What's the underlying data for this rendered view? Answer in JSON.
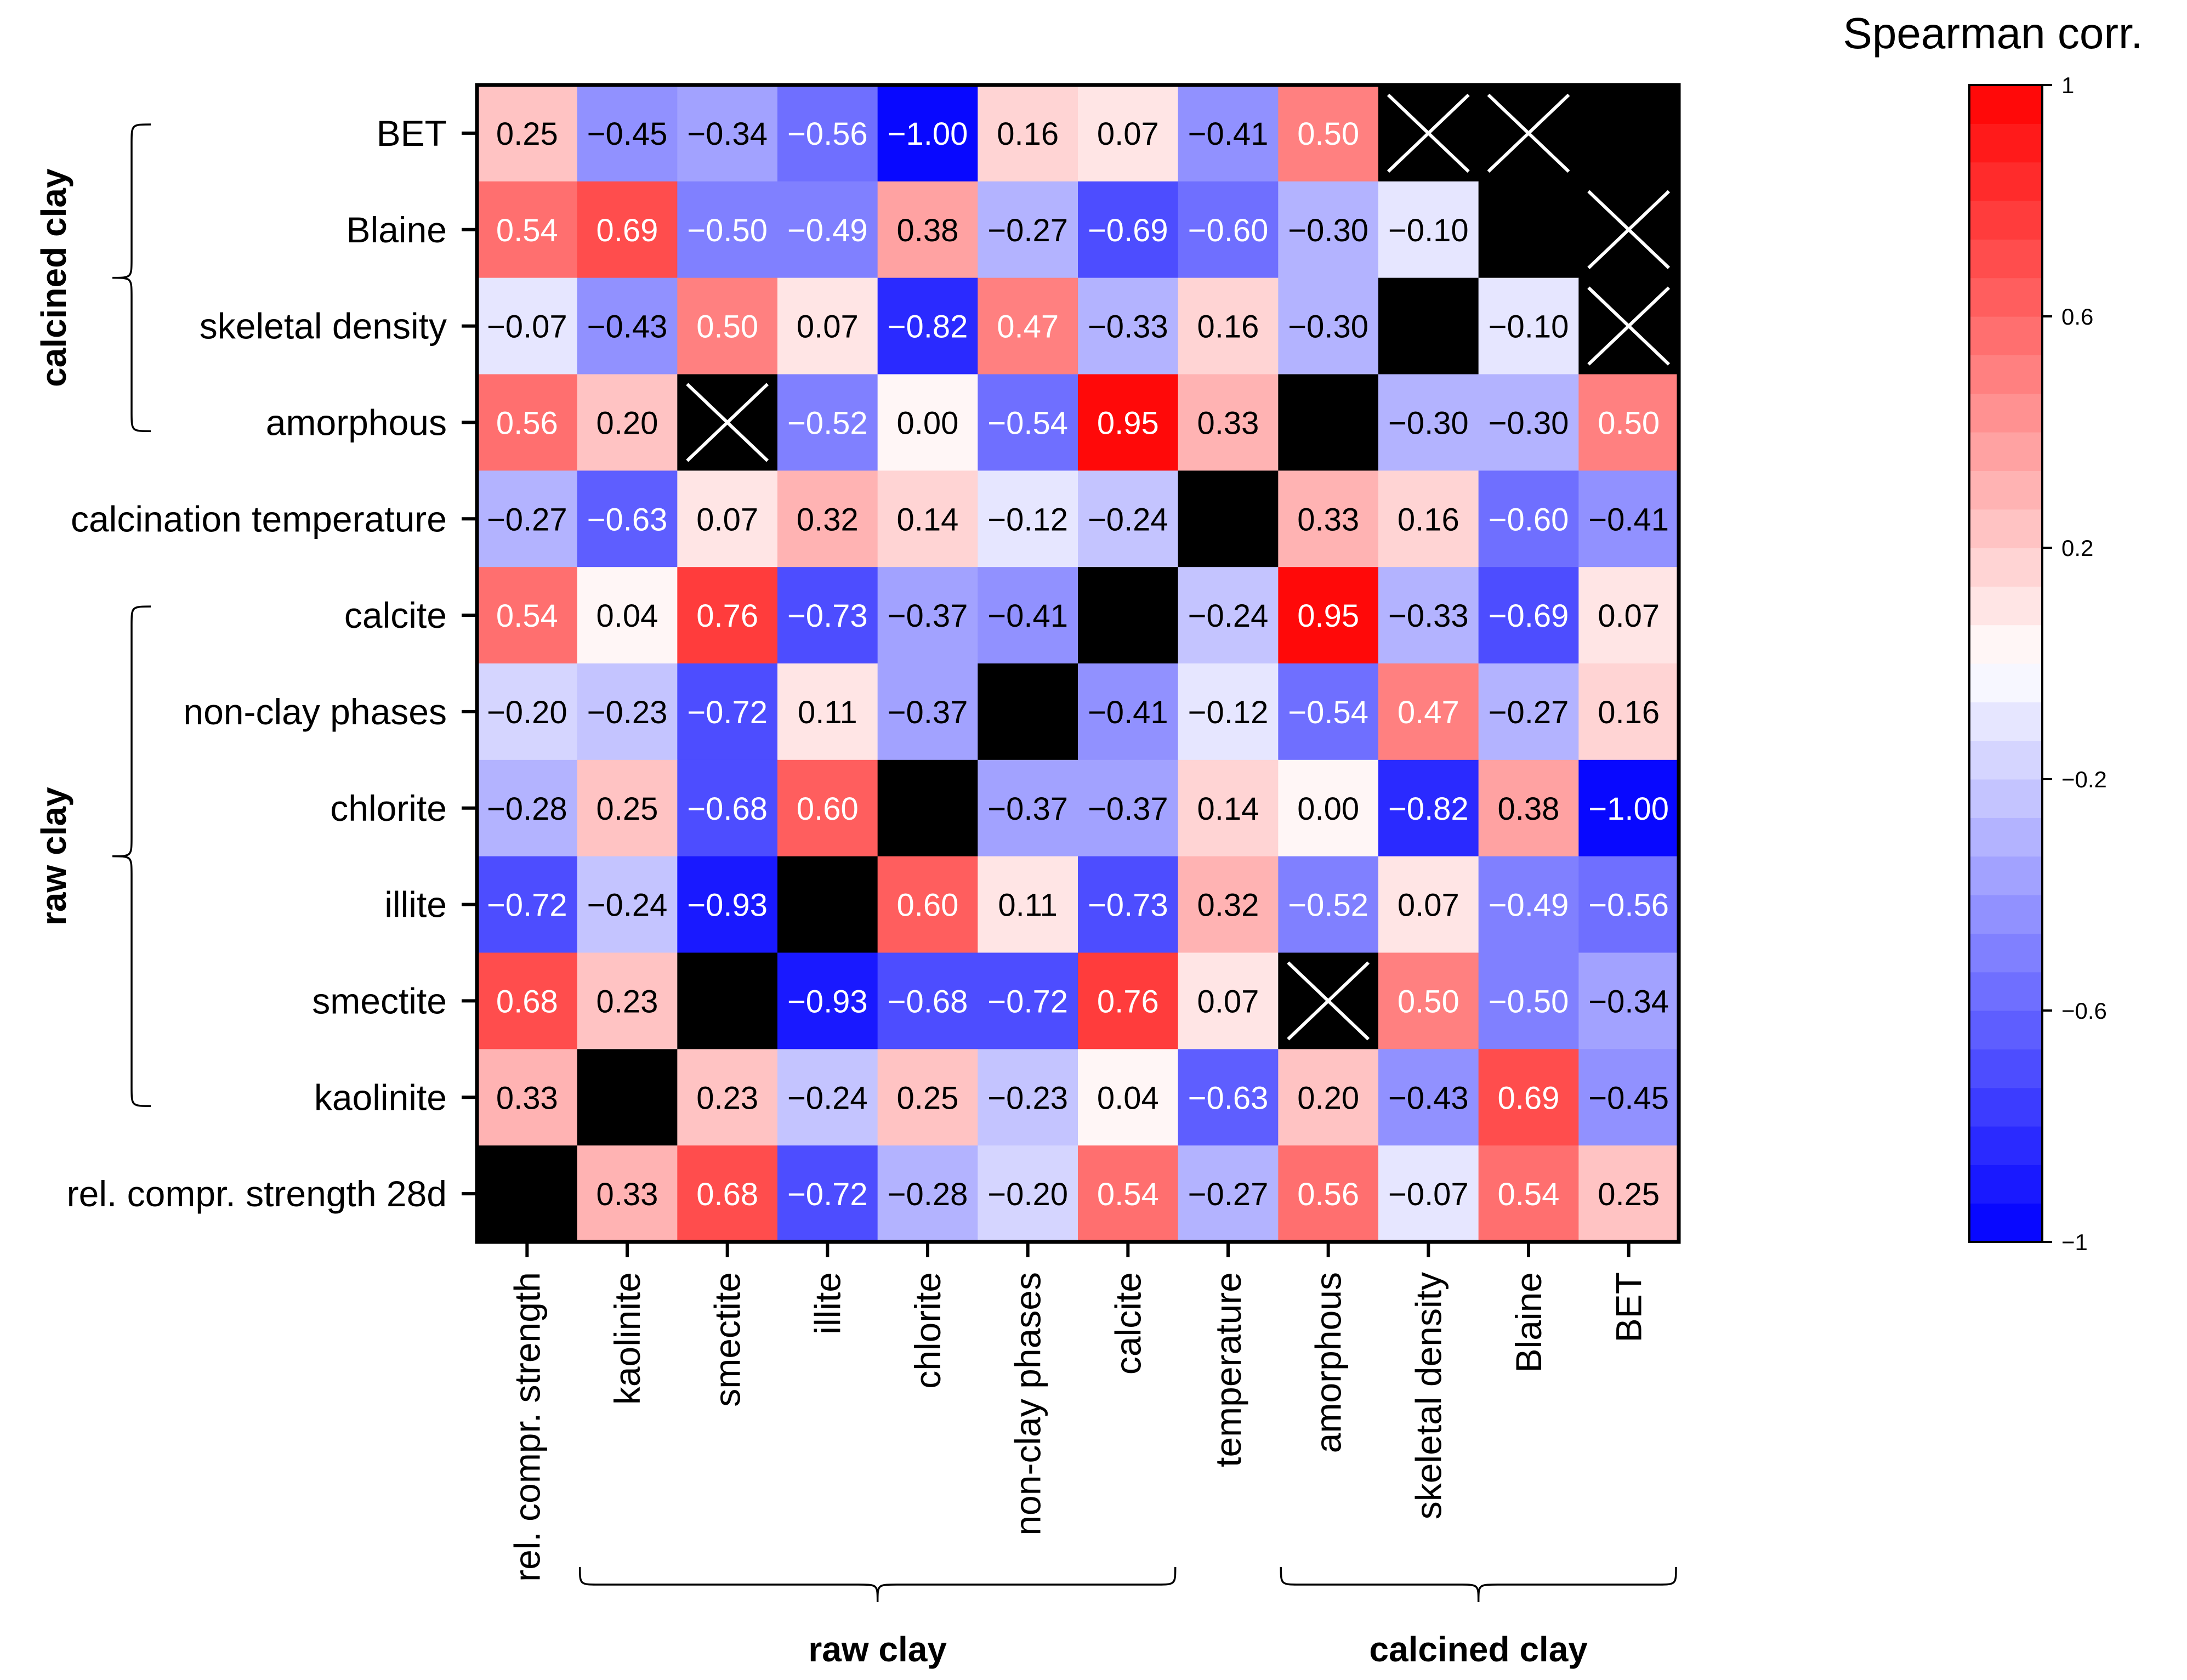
{
  "chart_data": {
    "type": "heatmap",
    "title": "Spearman corr.",
    "colorbar": {
      "title": "Spearman corr.",
      "min": -1,
      "max": 1,
      "levels": 30,
      "low_color": "#0000ff",
      "mid_color": "#ffffff",
      "high_color": "#ff0000",
      "tick_labels": [
        "1",
        "0.6",
        "0.2",
        "−0.2",
        "−0.6",
        "−1"
      ],
      "tick_values": [
        1,
        0.6,
        0.2,
        -0.2,
        -0.6,
        -1
      ]
    },
    "row_labels": [
      "BET",
      "Blaine",
      "skeletal density",
      "amorphous",
      "calcination temperature",
      "calcite",
      "non-clay phases",
      "chlorite",
      "illite",
      "smectite",
      "kaolinite",
      "rel. compr. strength 28d"
    ],
    "col_labels": [
      "rel. compr. strength",
      "kaolinite",
      "smectite",
      "illite",
      "chlorite",
      "non-clay phases",
      "calcite",
      "temperature",
      "amorphous",
      "skeletal density",
      "Blaine",
      "BET"
    ],
    "row_groups": [
      {
        "label": "calcined clay",
        "from_row": 0,
        "to_row": 3
      },
      {
        "label": "raw clay",
        "from_row": 5,
        "to_row": 10
      }
    ],
    "col_groups": [
      {
        "label": "raw clay",
        "from_col": 1,
        "to_col": 6
      },
      {
        "label": "calcined clay",
        "from_col": 8,
        "to_col": 11
      }
    ],
    "na_color": "#000000",
    "values": [
      [
        0.25,
        -0.45,
        -0.34,
        -0.56,
        -1.0,
        0.16,
        0.07,
        -0.41,
        0.5,
        "X",
        "X",
        null
      ],
      [
        0.54,
        0.69,
        -0.5,
        -0.49,
        0.38,
        -0.27,
        -0.69,
        -0.6,
        -0.3,
        -0.1,
        null,
        "X"
      ],
      [
        -0.07,
        -0.43,
        0.5,
        0.07,
        -0.82,
        0.47,
        -0.33,
        0.16,
        -0.3,
        null,
        -0.1,
        "X"
      ],
      [
        0.56,
        0.2,
        "X",
        -0.52,
        0.0,
        -0.54,
        0.95,
        0.33,
        null,
        -0.3,
        -0.3,
        0.5
      ],
      [
        -0.27,
        -0.63,
        0.07,
        0.32,
        0.14,
        -0.12,
        -0.24,
        null,
        0.33,
        0.16,
        -0.6,
        -0.41
      ],
      [
        0.54,
        0.04,
        0.76,
        -0.73,
        -0.37,
        -0.41,
        null,
        -0.24,
        0.95,
        -0.33,
        -0.69,
        0.07
      ],
      [
        -0.2,
        -0.23,
        -0.72,
        0.11,
        -0.37,
        null,
        -0.41,
        -0.12,
        -0.54,
        0.47,
        -0.27,
        0.16
      ],
      [
        -0.28,
        0.25,
        -0.68,
        0.6,
        null,
        -0.37,
        -0.37,
        0.14,
        0.0,
        -0.82,
        0.38,
        -1.0
      ],
      [
        -0.72,
        -0.24,
        -0.93,
        null,
        0.6,
        0.11,
        -0.73,
        0.32,
        -0.52,
        0.07,
        -0.49,
        -0.56
      ],
      [
        0.68,
        0.23,
        null,
        -0.93,
        -0.68,
        -0.72,
        0.76,
        0.07,
        "X",
        0.5,
        -0.5,
        -0.34
      ],
      [
        0.33,
        null,
        0.23,
        -0.24,
        0.25,
        -0.23,
        0.04,
        -0.63,
        0.2,
        -0.43,
        0.69,
        -0.45
      ],
      [
        null,
        0.33,
        0.68,
        -0.72,
        -0.28,
        -0.2,
        0.54,
        -0.27,
        0.56,
        -0.07,
        0.54,
        0.25
      ]
    ],
    "value_labels": [
      [
        "0.25",
        "−0.45",
        "−0.34",
        "−0.56",
        "−1.00",
        "0.16",
        "0.07",
        "−0.41",
        "0.50",
        "",
        "",
        ""
      ],
      [
        "0.54",
        "0.69",
        "−0.50",
        "−0.49",
        "0.38",
        "−0.27",
        "−0.69",
        "−0.60",
        "−0.30",
        "−0.10",
        "",
        ""
      ],
      [
        "−0.07",
        "−0.43",
        "0.50",
        "0.07",
        "−0.82",
        "0.47",
        "−0.33",
        "0.16",
        "−0.30",
        "",
        "−0.10",
        ""
      ],
      [
        "0.56",
        "0.20",
        "",
        "−0.52",
        "0.00",
        "−0.54",
        "0.95",
        "0.33",
        "",
        "−0.30",
        "−0.30",
        "0.50"
      ],
      [
        "−0.27",
        "−0.63",
        "0.07",
        "0.32",
        "0.14",
        "−0.12",
        "−0.24",
        "",
        "0.33",
        "0.16",
        "−0.60",
        "−0.41"
      ],
      [
        "0.54",
        "0.04",
        "0.76",
        "−0.73",
        "−0.37",
        "−0.41",
        "",
        "−0.24",
        "0.95",
        "−0.33",
        "−0.69",
        "0.07"
      ],
      [
        "−0.20",
        "−0.23",
        "−0.72",
        "0.11",
        "−0.37",
        "",
        "−0.41",
        "−0.12",
        "−0.54",
        "0.47",
        "−0.27",
        "0.16"
      ],
      [
        "−0.28",
        "0.25",
        "−0.68",
        "0.60",
        "",
        "−0.37",
        "−0.37",
        "0.14",
        "0.00",
        "−0.82",
        "0.38",
        "−1.00"
      ],
      [
        "−0.72",
        "−0.24",
        "−0.93",
        "",
        "0.60",
        "0.11",
        "−0.73",
        "0.32",
        "−0.52",
        "0.07",
        "−0.49",
        "−0.56"
      ],
      [
        "0.68",
        "0.23",
        "",
        "−0.93",
        "−0.68",
        "−0.72",
        "0.76",
        "0.07",
        "",
        "0.50",
        "−0.50",
        "−0.34"
      ],
      [
        "0.33",
        "",
        "0.23",
        "−0.24",
        "0.25",
        "−0.23",
        "0.04",
        "−0.63",
        "0.20",
        "−0.43",
        "0.69",
        "−0.45"
      ],
      [
        "",
        "0.33",
        "0.68",
        "−0.72",
        "−0.28",
        "−0.20",
        "0.54",
        "−0.27",
        "0.56",
        "−0.07",
        "0.54",
        "0.25"
      ]
    ]
  }
}
